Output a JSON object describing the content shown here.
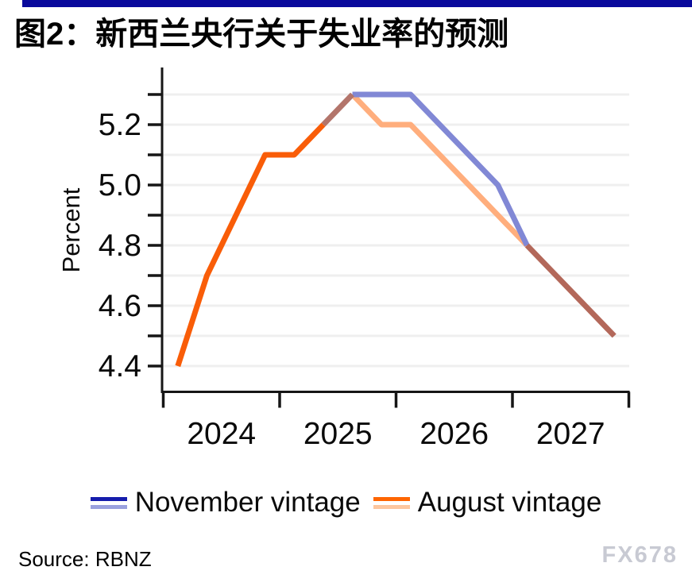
{
  "header": {
    "title": "图2：新西兰央行关于失业率的预测"
  },
  "accent": {
    "top_bar_color": "#0a0a9c"
  },
  "chart_data": {
    "type": "line",
    "title": "图2：新西兰央行关于失业率的预测",
    "ylabel": "Percent",
    "xlabel": "",
    "grid": "horizontal minor gridlines every 0.1",
    "legend_position": "bottom",
    "ylim": [
      4.4,
      5.3
    ],
    "y_minor_step": 0.1,
    "y_tick_labels": [
      "4.4",
      "4.6",
      "4.8",
      "5.0",
      "5.2"
    ],
    "y_tick_values": [
      4.4,
      4.6,
      4.8,
      5.0,
      5.2
    ],
    "x_tick_labels": [
      "2024",
      "2025",
      "2026",
      "2027"
    ],
    "x_quarters": [
      "2024Q1",
      "2024Q2",
      "2024Q3",
      "2024Q4",
      "2025Q1",
      "2025Q2",
      "2025Q3",
      "2025Q4",
      "2026Q1",
      "2026Q2",
      "2026Q3",
      "2026Q4",
      "2027Q1",
      "2027Q2",
      "2027Q3",
      "2027Q4"
    ],
    "series": [
      {
        "name": "November vintage",
        "values": [
          4.4,
          4.7,
          4.9,
          5.1,
          5.1,
          5.2,
          5.3,
          5.3,
          5.3,
          5.2,
          5.1,
          5.0,
          4.8,
          4.7,
          4.6,
          4.5
        ]
      },
      {
        "name": "August vintage",
        "values": [
          4.4,
          4.7,
          4.9,
          5.1,
          5.1,
          5.2,
          5.3,
          5.2,
          5.2,
          5.1,
          5.0,
          4.9,
          4.8,
          4.7,
          4.6,
          4.5
        ]
      }
    ],
    "segment_colors": {
      "actual_common": "#f95d08",
      "november_forecast": "#8188d5",
      "august_forecast": "#ffae7d",
      "overlap_rise": "#b3756b",
      "overlap_tail": "#b3685a"
    },
    "render_segments": [
      {
        "series": 1,
        "from": 6,
        "to": 12,
        "color_key": "august_forecast",
        "name": "august-forecast-line"
      },
      {
        "series": 0,
        "from": 6,
        "to": 12,
        "color_key": "november_forecast",
        "name": "november-forecast-line"
      },
      {
        "series": 0,
        "from": 5,
        "to": 6,
        "color_key": "overlap_rise",
        "name": "overlap-rise-line"
      },
      {
        "series": 0,
        "from": 12,
        "to": 15,
        "color_key": "overlap_tail",
        "name": "overlap-tail-line"
      },
      {
        "series": 1,
        "from": 0,
        "to": 5,
        "color_key": "actual_common",
        "name": "actual-history-line"
      }
    ]
  },
  "legend": {
    "items": [
      {
        "label": "November vintage",
        "swatch_colors": [
          "#151cac",
          "#9aa1de"
        ]
      },
      {
        "label": "August vintage",
        "swatch_colors": [
          "#fe6502",
          "#fdc69e"
        ]
      }
    ]
  },
  "footer": {
    "source": "Source: RBNZ",
    "watermark": "FX678"
  }
}
